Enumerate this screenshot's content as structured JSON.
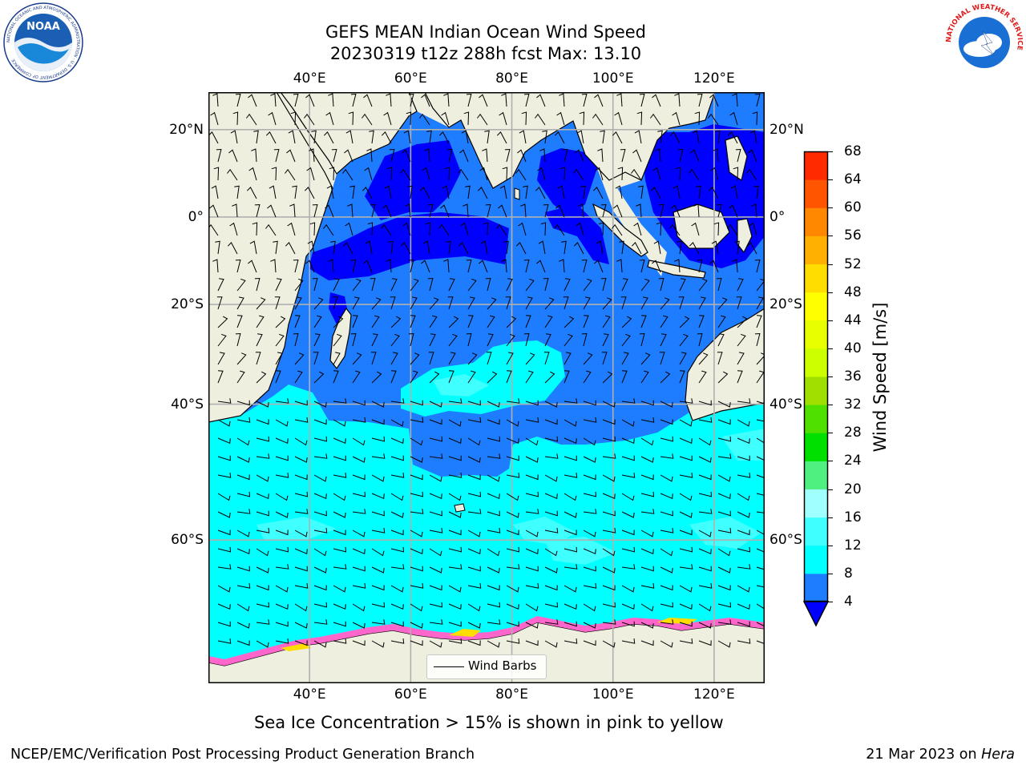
{
  "title": {
    "line1": "GEFS MEAN Indian Ocean Wind Speed",
    "line2": "20230319 t12z 288h fcst   Max: 13.10"
  },
  "logos": {
    "noaa_text": "NOAA",
    "noaa_ring_text": "NATIONAL OCEANIC AND ATMOSPHERIC ADMINISTRATION · U.S. DEPARTMENT OF COMMERCE",
    "nws_ring_text": "NATIONAL WEATHER SERVICE"
  },
  "map": {
    "lon_ticks_top": [
      "40°E",
      "60°E",
      "80°E",
      "100°E",
      "120°E"
    ],
    "lon_ticks_bottom": [
      "40°E",
      "60°E",
      "80°E",
      "100°E",
      "120°E"
    ],
    "lat_ticks_left": [
      "20°N",
      "0°",
      "20°S",
      "40°S",
      "60°S"
    ],
    "lat_ticks_right": [
      "20°N",
      "0°",
      "20°S",
      "40°S",
      "60°S"
    ],
    "lon_values": [
      40,
      60,
      80,
      100,
      120
    ],
    "lat_values": [
      20,
      0,
      -20,
      -40,
      -60
    ],
    "extent": {
      "lon_min": 20,
      "lon_max": 130,
      "lat_min": -73,
      "lat_max": 28
    },
    "legend_label": "Wind Barbs",
    "land_color": "#efefdf",
    "grid": true,
    "colors": {
      "band_4_8": "#1e7cff",
      "band_0_4": "#0000ff",
      "band_8_12": "#00ffff",
      "band_12_16": "#40ffff",
      "sea_ice": "#ff66cc",
      "sea_ice_high": "#ffdd00"
    }
  },
  "colorbar": {
    "label": "Wind Speed [m/s]",
    "ticks": [
      "4",
      "8",
      "12",
      "16",
      "20",
      "24",
      "28",
      "32",
      "36",
      "40",
      "44",
      "48",
      "52",
      "56",
      "60",
      "64",
      "68"
    ],
    "extend_color": "#0000ff",
    "colors": [
      "#1e7cff",
      "#00ffff",
      "#40ffff",
      "#a0ffff",
      "#50f080",
      "#00e000",
      "#50e000",
      "#a0e000",
      "#ccff00",
      "#e8ff00",
      "#ffff00",
      "#ffdd00",
      "#ffb000",
      "#ff8800",
      "#ff5500",
      "#ff2a00",
      "#ff0000"
    ]
  },
  "sea_ice_note": "Sea Ice Concentration > 15% is shown in pink to yellow",
  "footer": {
    "left": "NCEP/EMC/Verification Post Processing Product Generation Branch",
    "right_date": "21 Mar 2023 on ",
    "right_host": "Hera"
  }
}
